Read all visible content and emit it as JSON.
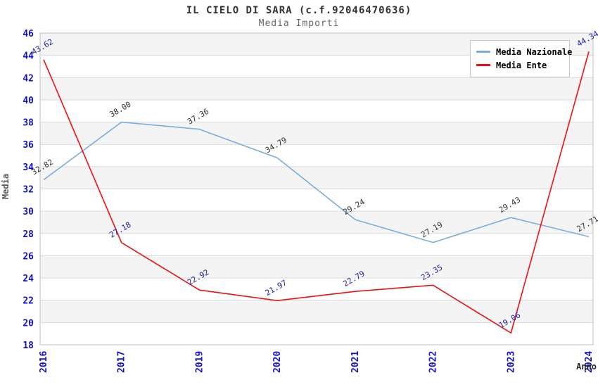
{
  "chart": {
    "title": "IL CIELO DI SARA (c.f.92046470636)",
    "subtitle": "Media Importi",
    "ylabel": "Media",
    "xlabel": "Anno",
    "legend": [
      {
        "label": "Media Nazionale",
        "color": "#7aade0"
      },
      {
        "label": "Media Ente",
        "color": "#ee1111"
      }
    ]
  },
  "chart_data": {
    "type": "line",
    "title": "IL CIELO DI SARA (c.f.92046470636)",
    "subtitle": "Media Importi",
    "xlabel": "Anno",
    "ylabel": "Media",
    "categories": [
      "2016",
      "2017",
      "2019",
      "2020",
      "2021",
      "2022",
      "2023",
      "2024"
    ],
    "series": [
      {
        "name": "Media Nazionale",
        "color": "#7aade0",
        "label_color": "#333333",
        "values": [
          32.82,
          38.0,
          37.36,
          34.79,
          29.24,
          27.19,
          29.43,
          27.71
        ]
      },
      {
        "name": "Media Ente",
        "color": "#ee1111",
        "label_color": "#2222aa",
        "values": [
          43.62,
          27.18,
          22.92,
          21.97,
          22.79,
          23.35,
          19.06,
          44.34
        ]
      }
    ],
    "ylim": [
      18,
      46
    ],
    "ytick_step": 2,
    "grid": true,
    "band_colors": [
      "#f4f4f4",
      "#ffffff"
    ],
    "grid_color": "#d9d9d9",
    "plot_border_color": "#c0c0c0",
    "tick_label_color": "#1111cc",
    "legend_position": "top-right",
    "data_label_rotation": -30,
    "x_tick_rotation": -90
  }
}
